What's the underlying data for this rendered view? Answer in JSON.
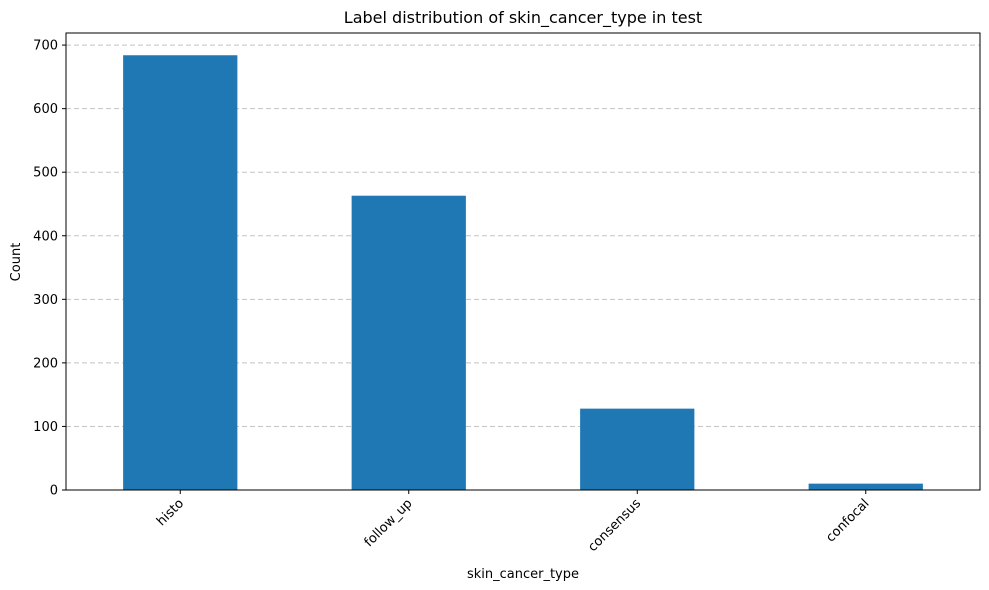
{
  "chart_data": {
    "type": "bar",
    "title": "Label distribution of skin_cancer_type in test",
    "xlabel": "skin_cancer_type",
    "ylabel": "Count",
    "categories": [
      "histo",
      "follow_up",
      "consensus",
      "confocal"
    ],
    "values": [
      684,
      463,
      128,
      10
    ],
    "ylim": [
      0,
      719
    ],
    "yticks": [
      0,
      100,
      200,
      300,
      400,
      500,
      600,
      700
    ],
    "grid": "y-dashed",
    "bar_color": "#1f77b4",
    "grid_color": "#c4c4c4"
  }
}
